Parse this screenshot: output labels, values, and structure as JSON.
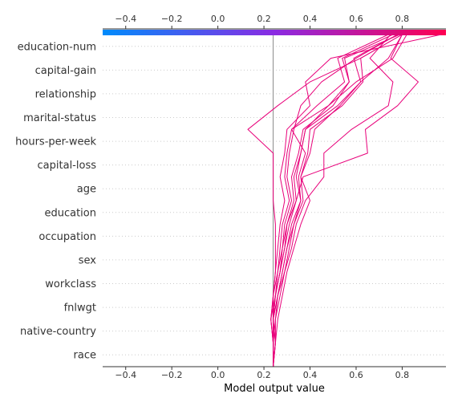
{
  "chart_data": {
    "type": "line",
    "subtype": "shap-decision-plot",
    "xlabel": "Model output value",
    "xlim": [
      -0.5,
      0.99
    ],
    "xticks": [
      -0.4,
      -0.2,
      0.0,
      0.2,
      0.4,
      0.6,
      0.8
    ],
    "tick_labels": [
      "−0.4",
      "−0.2",
      "0.0",
      "0.2",
      "0.4",
      "0.6",
      "0.8"
    ],
    "base_value": 0.24,
    "features": [
      "race",
      "native-country",
      "fnlwgt",
      "workclass",
      "sex",
      "occupation",
      "education",
      "age",
      "capital-loss",
      "hours-per-week",
      "marital-status",
      "relationship",
      "capital-gain",
      "education-num"
    ],
    "colorbar": {
      "low_color": "#008bfb",
      "mid_color": "#8a2be2",
      "high_color": "#ff0051"
    },
    "line_color": "#e8007a",
    "grid": "dotted-horizontal",
    "series": [
      {
        "values": [
          0.24,
          0.24,
          0.25,
          0.26,
          0.28,
          0.3,
          0.32,
          0.36,
          0.35,
          0.38,
          0.32,
          0.48,
          0.6,
          0.76,
          0.82
        ]
      },
      {
        "values": [
          0.24,
          0.25,
          0.24,
          0.25,
          0.27,
          0.29,
          0.31,
          0.34,
          0.33,
          0.36,
          0.38,
          0.52,
          0.62,
          0.59,
          0.78
        ]
      },
      {
        "values": [
          0.24,
          0.24,
          0.23,
          0.25,
          0.26,
          0.28,
          0.3,
          0.33,
          0.32,
          0.35,
          0.37,
          0.5,
          0.57,
          0.55,
          0.79
        ]
      },
      {
        "values": [
          0.24,
          0.25,
          0.25,
          0.27,
          0.29,
          0.31,
          0.33,
          0.37,
          0.36,
          0.39,
          0.4,
          0.54,
          0.63,
          0.62,
          0.8
        ]
      },
      {
        "values": [
          0.24,
          0.24,
          0.24,
          0.26,
          0.28,
          0.3,
          0.33,
          0.36,
          0.34,
          0.36,
          0.38,
          0.48,
          0.57,
          0.54,
          0.76
        ]
      },
      {
        "values": [
          0.24,
          0.25,
          0.26,
          0.28,
          0.3,
          0.33,
          0.36,
          0.4,
          0.36,
          0.4,
          0.42,
          0.53,
          0.62,
          0.74,
          0.8
        ]
      },
      {
        "values": [
          0.24,
          0.24,
          0.24,
          0.26,
          0.29,
          0.32,
          0.34,
          0.38,
          0.46,
          0.46,
          0.58,
          0.74,
          0.76,
          0.66,
          0.75
        ]
      },
      {
        "values": [
          0.24,
          0.25,
          0.24,
          0.25,
          0.27,
          0.29,
          0.3,
          0.34,
          0.37,
          0.65,
          0.64,
          0.78,
          0.87,
          0.75,
          0.8
        ]
      },
      {
        "values": [
          0.24,
          0.24,
          0.23,
          0.24,
          0.25,
          0.25,
          0.25,
          0.24,
          0.24,
          0.24,
          0.13,
          0.26,
          0.4,
          0.62,
          0.8
        ]
      },
      {
        "values": [
          0.24,
          0.24,
          0.24,
          0.25,
          0.27,
          0.28,
          0.29,
          0.32,
          0.3,
          0.31,
          0.33,
          0.36,
          0.45,
          0.6,
          0.78
        ]
      },
      {
        "values": [
          0.24,
          0.24,
          0.24,
          0.24,
          0.25,
          0.26,
          0.27,
          0.29,
          0.27,
          0.29,
          0.3,
          0.4,
          0.38,
          0.49,
          0.97
        ]
      },
      {
        "values": [
          0.24,
          0.24,
          0.23,
          0.24,
          0.26,
          0.27,
          0.28,
          0.31,
          0.29,
          0.3,
          0.32,
          0.43,
          0.55,
          0.52,
          0.74
        ]
      }
    ]
  }
}
